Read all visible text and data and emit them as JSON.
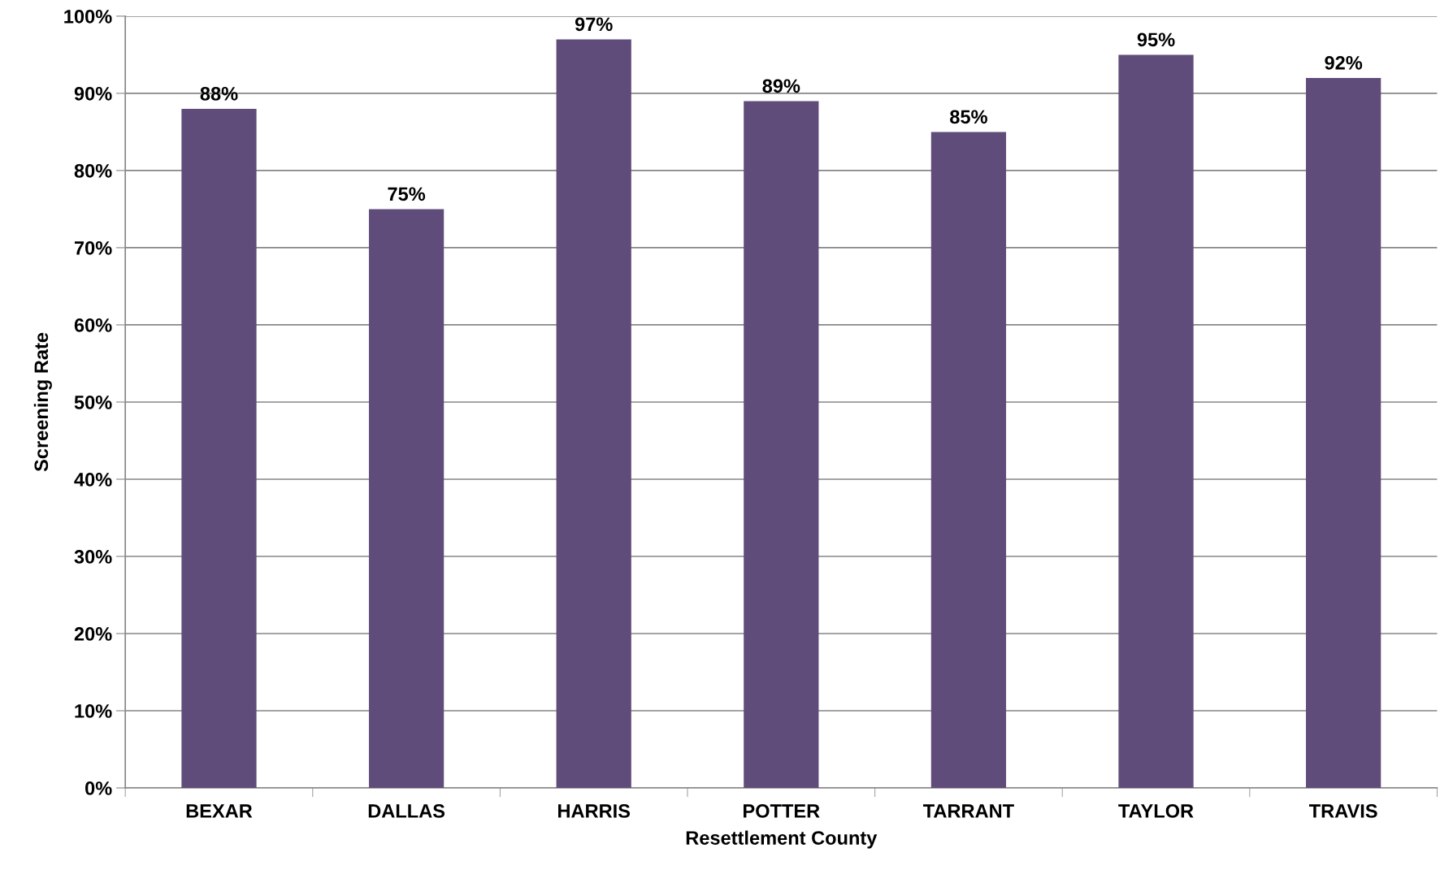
{
  "chart_data": {
    "type": "bar",
    "xlabel": "Resettlement County",
    "ylabel": "Screening Rate",
    "categories": [
      "BEXAR",
      "DALLAS",
      "HARRIS",
      "POTTER",
      "TARRANT",
      "TAYLOR",
      "TRAVIS"
    ],
    "values": [
      88,
      75,
      97,
      89,
      85,
      95,
      92
    ],
    "value_labels": [
      "88%",
      "75%",
      "97%",
      "89%",
      "85%",
      "95%",
      "92%"
    ],
    "color": "#604c7a",
    "ylim": [
      0,
      100
    ],
    "yticks": [
      {
        "value": 0,
        "label": "0%"
      },
      {
        "value": 10,
        "label": "10%"
      },
      {
        "value": 20,
        "label": "20%"
      },
      {
        "value": 30,
        "label": "30%"
      },
      {
        "value": 40,
        "label": "40%"
      },
      {
        "value": 50,
        "label": "50%"
      },
      {
        "value": 60,
        "label": "60%"
      },
      {
        "value": 70,
        "label": "70%"
      },
      {
        "value": 80,
        "label": "80%"
      },
      {
        "value": 90,
        "label": "90%"
      },
      {
        "value": 100,
        "label": "100%"
      }
    ],
    "grid": "y"
  }
}
